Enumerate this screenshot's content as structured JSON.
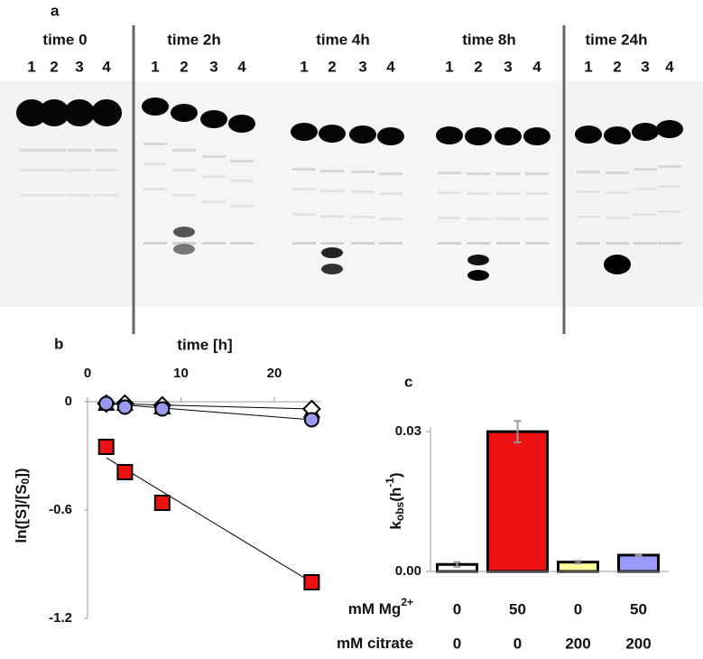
{
  "panel_labels": [
    "a",
    "b",
    "c"
  ],
  "gel": {
    "groups": [
      {
        "label": "time 0",
        "lanes": [
          "1",
          "2",
          "3",
          "4"
        ]
      },
      {
        "label": "time 2h",
        "lanes": [
          "1",
          "2",
          "3",
          "4"
        ]
      },
      {
        "label": "time 4h",
        "lanes": [
          "1",
          "2",
          "3",
          "4"
        ]
      },
      {
        "label": "time 8h",
        "lanes": [
          "1",
          "2",
          "3",
          "4"
        ]
      },
      {
        "label": "time 24h",
        "lanes": [
          "1",
          "2",
          "3",
          "4"
        ]
      }
    ]
  },
  "chart_data": [
    {
      "type": "scatter",
      "xlabel": "time [h]",
      "ylabel": {
        "pre": "ln([S]/[S",
        "sub": "0",
        "post": "])"
      },
      "xlim": [
        0,
        25
      ],
      "xticks": [
        0,
        10,
        20
      ],
      "ylim": [
        -1.2,
        0
      ],
      "yticks": [
        0,
        -0.6,
        -1.2
      ],
      "series": [
        {
          "marker": "none",
          "color": "#000000",
          "x": [
            2,
            24
          ],
          "values": [
            -0.31,
            -1.0
          ]
        },
        {
          "marker": "none",
          "color": "#000000",
          "x": [
            2,
            24
          ],
          "values": [
            -0.01,
            -0.1
          ]
        },
        {
          "marker": "none",
          "color": "#000000",
          "x": [
            2,
            24
          ],
          "values": [
            -0.01,
            -0.04
          ]
        },
        {
          "marker": "triangle",
          "color": "#ffffff",
          "x": [
            2,
            4,
            8,
            24
          ],
          "values": [
            -0.01,
            -0.01,
            -0.03,
            -0.05
          ]
        },
        {
          "marker": "diamond",
          "color": "#ffffff",
          "x": [
            2,
            4,
            8,
            24
          ],
          "values": [
            -0.01,
            -0.01,
            -0.02,
            -0.04
          ]
        },
        {
          "marker": "circle",
          "color": "#9999ee",
          "x": [
            2,
            4,
            8,
            24
          ],
          "values": [
            -0.01,
            -0.03,
            -0.04,
            -0.1
          ]
        },
        {
          "marker": "square",
          "color": "#ee1111",
          "x": [
            2,
            4,
            8,
            24
          ],
          "values": [
            -0.25,
            -0.39,
            -0.56,
            -1.0
          ]
        }
      ]
    },
    {
      "type": "bar",
      "ylabel": {
        "pre": "k",
        "sub": "obs",
        "mid": "(h",
        "sup": "-1",
        "post": ")"
      },
      "ylim": [
        0,
        0.031
      ],
      "yticks": [
        {
          "value": 0,
          "label": "0.00"
        },
        {
          "value": 0.03,
          "label": "0.03"
        }
      ],
      "category_rows": [
        {
          "label": {
            "pre": "mM Mg",
            "sup": "2+"
          },
          "values": [
            "0",
            "50",
            "0",
            "50"
          ]
        },
        {
          "label": {
            "pre": "mM citrate"
          },
          "values": [
            "0",
            "0",
            "200",
            "200"
          ]
        }
      ],
      "values": [
        0.0015,
        0.03,
        0.002,
        0.0035
      ],
      "errors": [
        0.0005,
        0.0023,
        0.0003,
        0.0002
      ],
      "colors": [
        "#ffffff",
        "#ee1111",
        "#ffff99",
        "#9999ff"
      ]
    }
  ]
}
